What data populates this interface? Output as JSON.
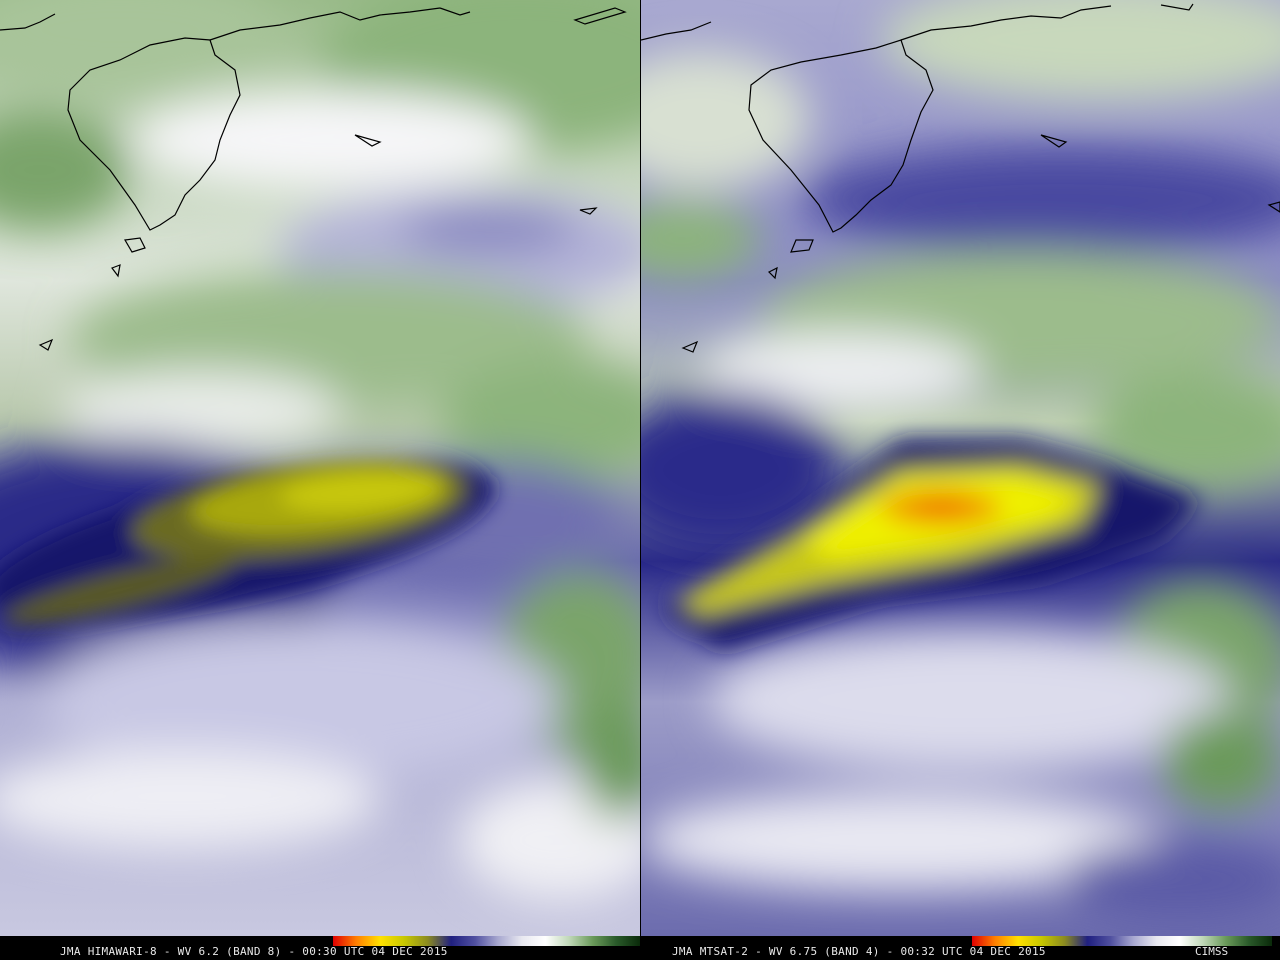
{
  "left_panel": {
    "caption": "JMA HIMAWARI-8 - WV 6.2 (BAND 8) - 00:30 UTC 04 DEC 2015"
  },
  "right_panel": {
    "caption": "JMA MTSAT-2 - WV 6.75 (BAND 4) - 00:32 UTC 04 DEC 2015",
    "credit": "CIMSS"
  },
  "colors": {
    "dry_yellow": "#e6e600",
    "dry_orange": "#f08a00",
    "mid_navy": "#1c1c78",
    "lavender": "#a8a8d0",
    "moist_white": "#f4f4f6",
    "moist_green": "#5c8c4c"
  },
  "colorbar_stops": [
    "#e00000",
    "#ff8000",
    "#ffe000",
    "#c8c800",
    "#8c8c20",
    "#202080",
    "#5050a0",
    "#a8a8d0",
    "#e8e8f0",
    "#ffffff",
    "#c0d8b8",
    "#6a9a5a",
    "#2a5a2a",
    "#0a2a0a"
  ]
}
